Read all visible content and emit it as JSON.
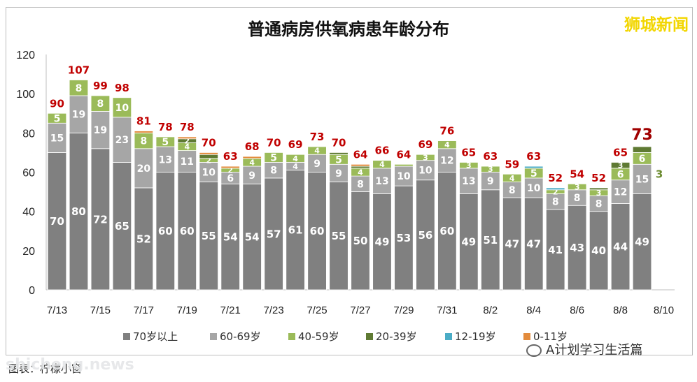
{
  "brand": "狮城新闻",
  "credit": "图表：柠檬小窗",
  "watermark_wechat": "A计划学习生活篇",
  "watermark_site": "shicheng.news",
  "chart_data": {
    "type": "bar",
    "stacked": true,
    "title": "普通病房供氧病患年龄分布",
    "dates": [
      "7/13",
      "7/14",
      "7/15",
      "7/16",
      "7/17",
      "7/18",
      "7/19",
      "7/20",
      "7/21",
      "7/22",
      "7/23",
      "7/24",
      "7/25",
      "7/26",
      "7/27",
      "7/28",
      "7/29",
      "7/30",
      "7/31",
      "8/1",
      "8/2",
      "8/3",
      "8/4",
      "8/5",
      "8/6",
      "8/7",
      "8/8",
      "8/9",
      "8/10"
    ],
    "x_tick_labels": [
      "7/13",
      "7/15",
      "7/17",
      "7/19",
      "7/21",
      "7/23",
      "7/25",
      "7/27",
      "7/29",
      "7/31",
      "8/2",
      "8/4",
      "8/6",
      "8/8",
      "8/10"
    ],
    "ylim": [
      0,
      120
    ],
    "yticks": [
      0,
      20,
      40,
      60,
      80,
      100,
      120
    ],
    "legend_position": "bottom",
    "gridlines": false,
    "series": [
      {
        "name": "70岁以上",
        "color": "#808080",
        "values": [
          70,
          80,
          72,
          65,
          52,
          60,
          60,
          55,
          54,
          54,
          57,
          61,
          60,
          55,
          50,
          49,
          53,
          56,
          60,
          49,
          51,
          47,
          47,
          41,
          43,
          40,
          44,
          49,
          null
        ]
      },
      {
        "name": "60-69岁",
        "color": "#a6a6a6",
        "values": [
          15,
          19,
          19,
          23,
          20,
          13,
          11,
          10,
          6,
          9,
          8,
          4,
          9,
          9,
          8,
          13,
          10,
          10,
          12,
          13,
          9,
          8,
          10,
          8,
          8,
          8,
          12,
          15,
          null
        ]
      },
      {
        "name": "40-59岁",
        "color": "#9bbb59",
        "values": [
          5,
          8,
          8,
          10,
          8,
          5,
          4,
          2,
          2,
          4,
          5,
          4,
          4,
          5,
          4,
          4,
          1,
          3,
          4,
          3,
          3,
          4,
          5,
          2,
          3,
          3,
          6,
          6,
          null
        ]
      },
      {
        "name": "20-39岁",
        "color": "#5f7a33",
        "values": [
          0,
          0,
          0,
          0,
          0,
          0,
          2,
          2,
          0,
          0,
          0,
          0,
          0,
          1,
          1,
          0,
          0,
          0,
          0,
          0,
          0,
          0,
          0,
          0,
          0,
          1,
          3,
          3,
          null
        ]
      },
      {
        "name": "12-19岁",
        "color": "#4bacc6",
        "values": [
          0,
          0,
          0,
          0,
          0,
          0,
          0,
          0,
          0,
          0,
          0,
          0,
          0,
          0,
          0,
          0,
          0,
          0,
          0,
          0,
          0,
          0,
          1,
          1,
          0,
          0,
          0,
          0,
          null
        ]
      },
      {
        "name": "0-11岁",
        "color": "#e38b3c",
        "values": [
          0,
          0,
          0,
          0,
          1,
          0,
          1,
          1,
          1,
          1,
          0,
          0,
          0,
          0,
          1,
          0,
          0,
          0,
          0,
          0,
          0,
          0,
          0,
          0,
          0,
          0,
          0,
          0,
          null
        ]
      }
    ],
    "totals": [
      90,
      107,
      99,
      98,
      81,
      78,
      78,
      70,
      63,
      68,
      70,
      69,
      73,
      70,
      64,
      66,
      64,
      69,
      76,
      65,
      63,
      59,
      63,
      52,
      54,
      52,
      65,
      73,
      null
    ],
    "shown_labels": [
      [
        "70",
        "15",
        "5",
        null,
        null,
        null
      ],
      [
        "80",
        "19",
        "8",
        null,
        null,
        null
      ],
      [
        "72",
        "19",
        "8",
        null,
        null,
        null
      ],
      [
        "65",
        "23",
        "10",
        null,
        null,
        null
      ],
      [
        "52",
        "20",
        "8",
        null,
        null,
        null
      ],
      [
        "60",
        "13",
        "5",
        null,
        null,
        null
      ],
      [
        "60",
        "11",
        "4",
        "2",
        null,
        null
      ],
      [
        "55",
        "10",
        "2",
        null,
        null,
        null
      ],
      [
        "54",
        "6",
        "2",
        null,
        null,
        null
      ],
      [
        "54",
        "9",
        "4",
        null,
        null,
        null
      ],
      [
        "57",
        "8",
        "5",
        null,
        null,
        null
      ],
      [
        "61",
        "4",
        "4",
        null,
        null,
        null
      ],
      [
        "60",
        "9",
        "4",
        null,
        null,
        null
      ],
      [
        "55",
        "9",
        "5",
        null,
        null,
        null
      ],
      [
        "50",
        "8",
        "4",
        null,
        null,
        null
      ],
      [
        "49",
        "13",
        "4",
        null,
        null,
        null
      ],
      [
        "53",
        "10",
        null,
        null,
        null,
        null
      ],
      [
        "56",
        "10",
        "3",
        null,
        null,
        null
      ],
      [
        "60",
        "12",
        "4",
        null,
        null,
        null
      ],
      [
        "49",
        "13",
        "3",
        null,
        null,
        null
      ],
      [
        "51",
        "9",
        "3",
        null,
        null,
        null
      ],
      [
        "47",
        "8",
        "4",
        null,
        null,
        null
      ],
      [
        "47",
        "10",
        "5",
        null,
        null,
        null
      ],
      [
        "41",
        "8",
        "2",
        null,
        null,
        null
      ],
      [
        "43",
        "8",
        "3",
        null,
        null,
        null
      ],
      [
        "40",
        "8",
        "3",
        null,
        null,
        null
      ],
      [
        "44",
        "12",
        "6",
        "3",
        null,
        null
      ],
      [
        "49",
        "15",
        "6",
        null,
        null,
        null
      ],
      [
        null,
        null,
        null,
        null,
        null,
        null
      ]
    ],
    "last_bar_side_label": "3",
    "highlight_total_index": 27,
    "colors": {
      "total_label": "#c00000"
    }
  }
}
